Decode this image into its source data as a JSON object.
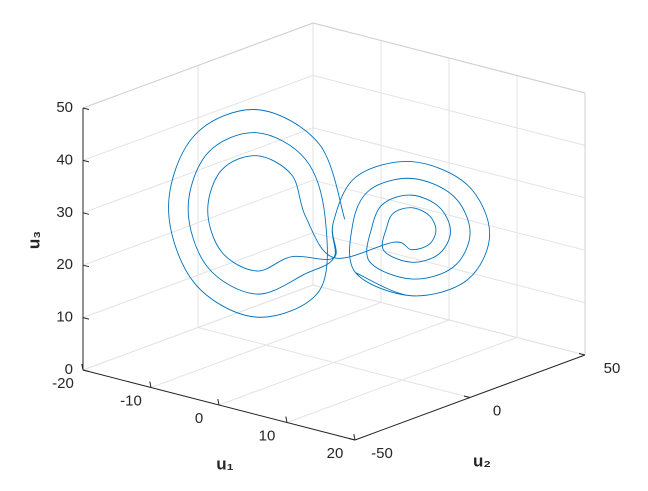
{
  "chart_data": {
    "type": "line3d",
    "xlabel": "u₁",
    "ylabel": "u₂",
    "zlabel": "u₃",
    "color": "#0072bd",
    "grid": true,
    "xlim": [
      -20,
      20
    ],
    "ylim": [
      -50,
      50
    ],
    "zlim": [
      0,
      50
    ],
    "xticks": [
      -20,
      -10,
      0,
      10,
      20
    ],
    "yticks": [
      -50,
      0,
      50
    ],
    "zticks": [
      0,
      10,
      20,
      30,
      40,
      50
    ],
    "x": [
      0.5,
      -2.1,
      -8.5,
      -14.9,
      -17.5,
      -14.9,
      -8.5,
      -2.1,
      -1.5,
      -3.5,
      -8.5,
      -13.5,
      -15.5,
      -13.5,
      -8.5,
      -3.5,
      0,
      0.5,
      2.8,
      8.5,
      14.2,
      16.5,
      14.2,
      8.5,
      2.8,
      2.5,
      4.2,
      8.5,
      12.8,
      14.5,
      12.8,
      8.5,
      4.2,
      4.5,
      5.7,
      8.5,
      11.3,
      12.5,
      11.3,
      8.5,
      5.7,
      6,
      6.7,
      8.5,
      10.3,
      11,
      10.3,
      8.5,
      6.7,
      0,
      -3.5,
      -4.9,
      -8.5,
      -12.1,
      -13.5,
      -12.1,
      -8.5,
      -4.9,
      0,
      0.5,
      2.8,
      8.5,
      14.2,
      16.5,
      14.2,
      8.5,
      2.8
    ],
    "y": [
      3.2,
      -0.2,
      -8.5,
      -16.8,
      -20.2,
      -16.8,
      -8.5,
      -0.2,
      0.6,
      -2,
      -8.5,
      -15,
      -17.6,
      -15,
      -8.5,
      -2,
      0,
      -1.9,
      1.1,
      8.5,
      15.9,
      18.9,
      15.9,
      8.5,
      1.1,
      0.7,
      3,
      8.5,
      14,
      16.3,
      14,
      8.5,
      3,
      3.3,
      4.8,
      8.5,
      12.2,
      13.7,
      12.2,
      8.5,
      4.8,
      5.2,
      6.2,
      8.5,
      10.8,
      11.8,
      10.8,
      8.5,
      6.2,
      0,
      -2,
      -3.9,
      -8.5,
      -13.1,
      -15,
      -13.1,
      -8.5,
      -3.9,
      0,
      -1.9,
      1.1,
      8.5,
      15.9,
      18.9,
      15.9,
      8.5,
      1.1
    ],
    "z": [
      27,
      41,
      46.8,
      41,
      27,
      13,
      7.2,
      13,
      27,
      37.9,
      42.4,
      37.9,
      27,
      16.1,
      11.6,
      16.1,
      20,
      27,
      36.1,
      39.8,
      36.1,
      27,
      17.9,
      14.2,
      17.9,
      27,
      33.8,
      36.6,
      33.8,
      27,
      20.2,
      17.4,
      20.2,
      27,
      31.5,
      33.4,
      31.5,
      27,
      22.5,
      20.6,
      22.5,
      27,
      29.8,
      31,
      29.8,
      27,
      24.2,
      23,
      24.2,
      20,
      27,
      34.8,
      38,
      34.8,
      27,
      19.2,
      16,
      19.2,
      20,
      27,
      36.1,
      39.8,
      36.1,
      27,
      17.9,
      14.2,
      17.9
    ]
  }
}
